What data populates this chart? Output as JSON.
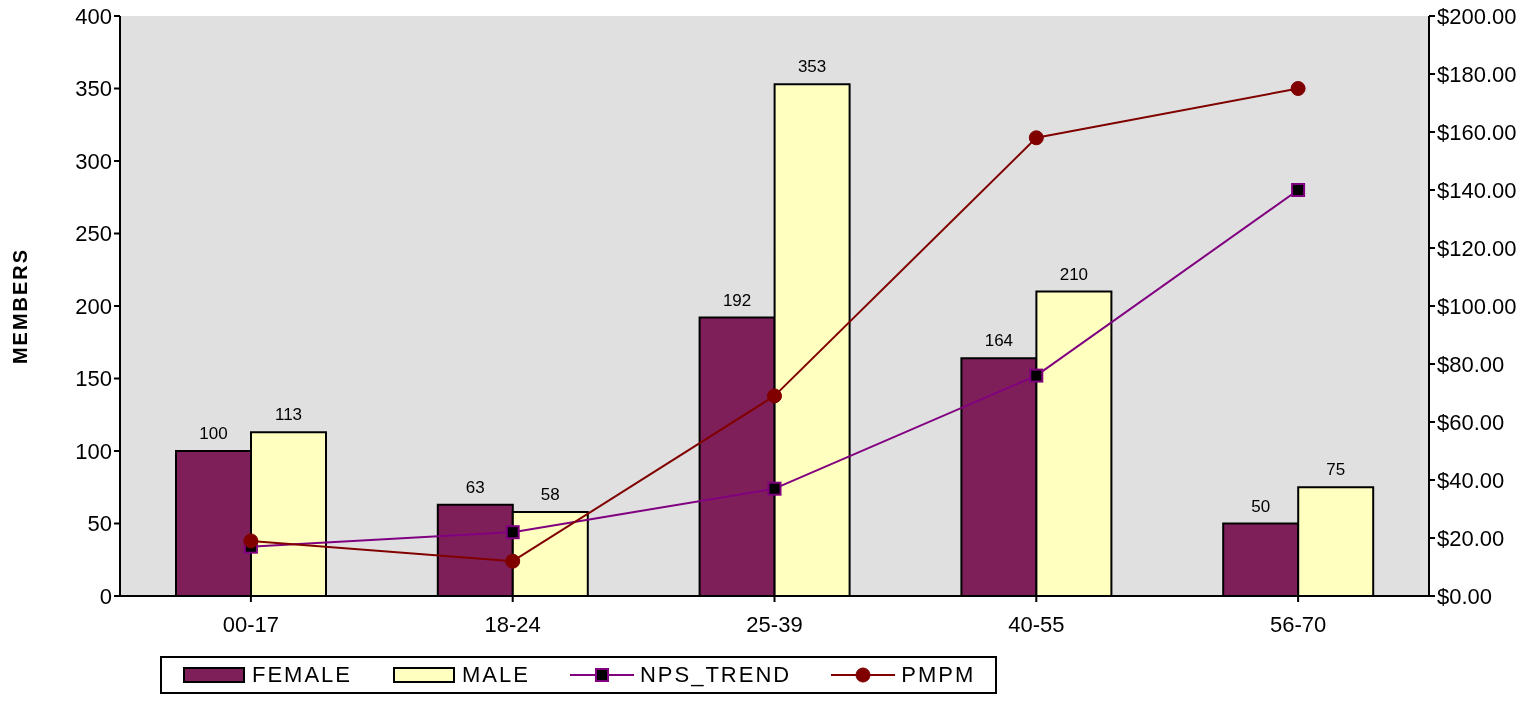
{
  "chart_data": {
    "type": "bar",
    "categories": [
      "00-17",
      "18-24",
      "25-39",
      "40-55",
      "56-70"
    ],
    "ylabel": "MEMBERS",
    "ylim": [
      0,
      400
    ],
    "yticks": [
      0,
      50,
      100,
      150,
      200,
      250,
      300,
      350,
      400
    ],
    "y2lim": [
      0,
      200
    ],
    "y2ticks": [
      {
        "value": 0,
        "label": "$0.00"
      },
      {
        "value": 20,
        "label": "$20.00"
      },
      {
        "value": 40,
        "label": "$40.00"
      },
      {
        "value": 60,
        "label": "$60.00"
      },
      {
        "value": 80,
        "label": "$80.00"
      },
      {
        "value": 100,
        "label": "$100.00"
      },
      {
        "value": 120,
        "label": "$120.00"
      },
      {
        "value": 140,
        "label": "$140.00"
      },
      {
        "value": 160,
        "label": "$160.00"
      },
      {
        "value": 180,
        "label": "$180.00"
      },
      {
        "value": 200,
        "label": "$200.00"
      }
    ],
    "series": [
      {
        "name": "FEMALE",
        "color": "#7f1f5a",
        "values": [
          100,
          63,
          192,
          164,
          50
        ],
        "value_labels": [
          "100",
          "63",
          "192",
          "164",
          "50"
        ]
      },
      {
        "name": "MALE",
        "color": "#ffffc0",
        "values": [
          113,
          58,
          353,
          210,
          75
        ],
        "value_labels": [
          "113",
          "58",
          "353",
          "210",
          "75"
        ]
      },
      {
        "name": "NPS_TREND",
        "type": "line",
        "axis": "y2",
        "color": "#800080",
        "marker": "square",
        "values": [
          17,
          22,
          37,
          76,
          140
        ]
      },
      {
        "name": "PMPM",
        "type": "line",
        "axis": "y2",
        "color": "#800000",
        "marker": "circle",
        "values": [
          19,
          12,
          69,
          158,
          175
        ]
      }
    ],
    "grid": false,
    "legend": "bottom"
  }
}
